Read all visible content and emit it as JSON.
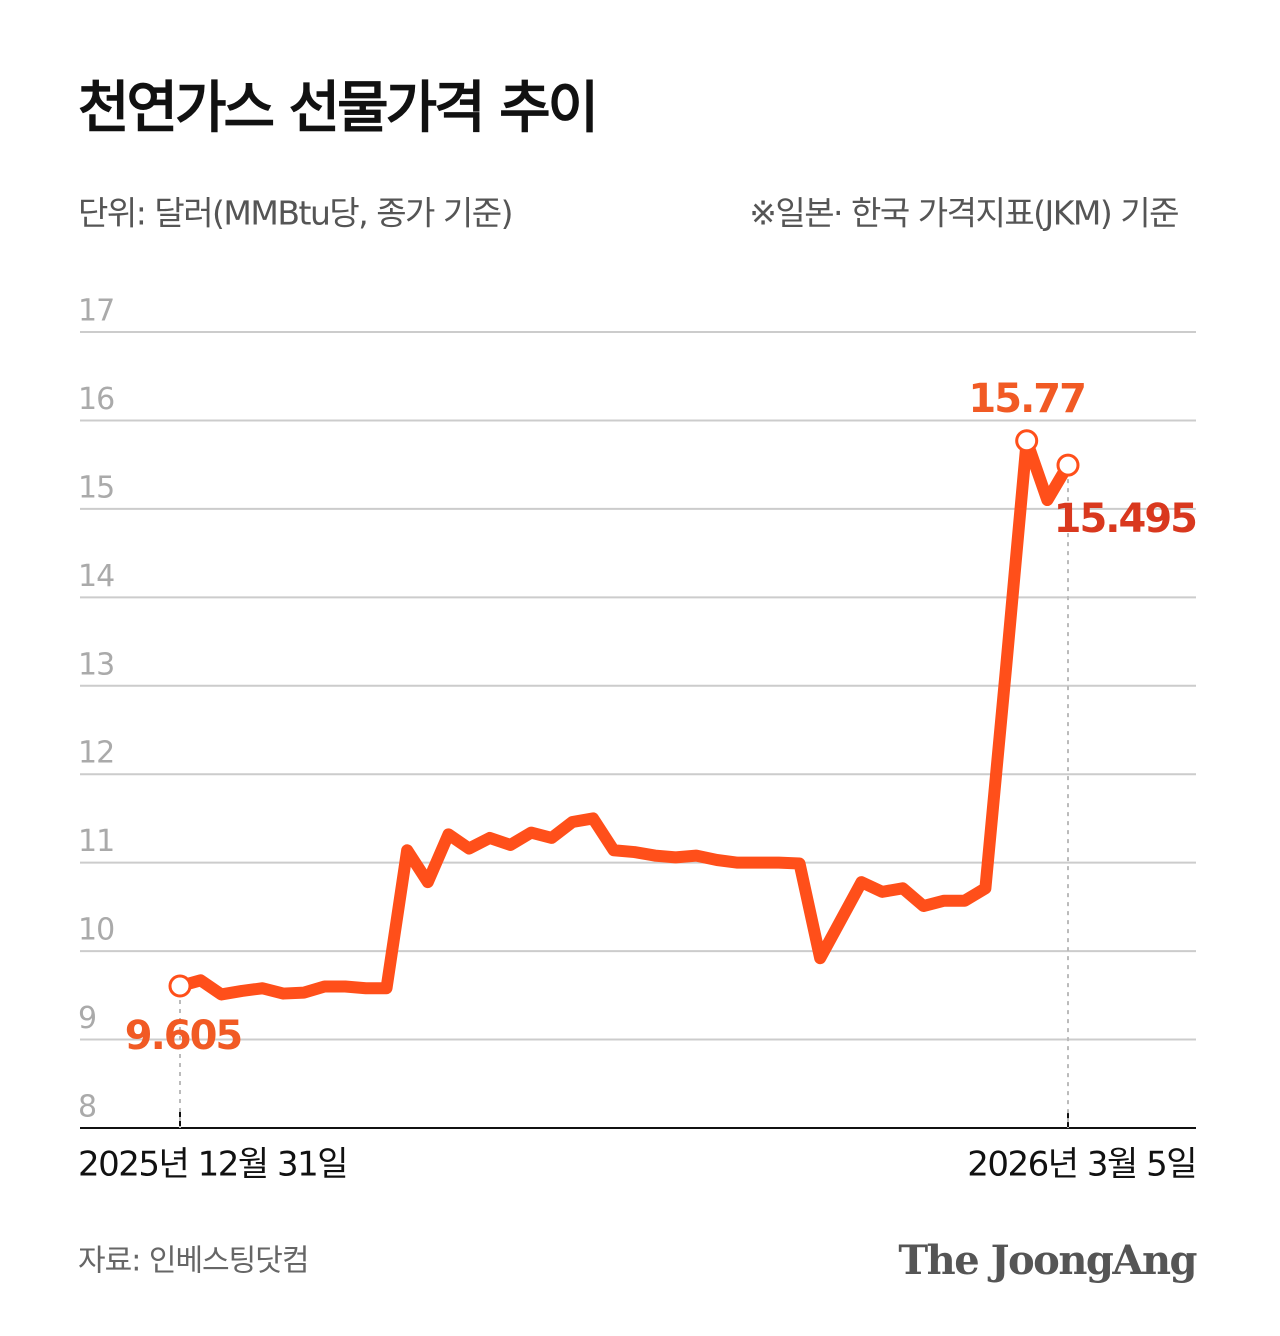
{
  "chart_data": {
    "type": "line",
    "title": "천연가스 선물가격 추이",
    "subtitle": "단위: 달러(MMBtu당, 종가 기준)",
    "note": "※일본· 한국 가격지표(JKM) 기준",
    "source": "자료: 인베스팅닷컴",
    "brand": "The JoongAng",
    "categories": [
      "2025년 12월 31일",
      null,
      null,
      null,
      null,
      null,
      null,
      null,
      null,
      null,
      null,
      null,
      null,
      null,
      null,
      null,
      null,
      null,
      null,
      null,
      null,
      null,
      null,
      null,
      null,
      null,
      null,
      null,
      null,
      null,
      null,
      null,
      null,
      null,
      null,
      null,
      null,
      null,
      null,
      null,
      null,
      null,
      null,
      "2026년 3월 5일"
    ],
    "values": [
      9.605,
      9.67,
      9.51,
      9.55,
      9.58,
      9.52,
      9.53,
      9.6,
      9.6,
      9.58,
      9.58,
      11.14,
      10.78,
      11.32,
      11.16,
      11.28,
      11.2,
      11.34,
      11.28,
      11.46,
      11.5,
      11.14,
      11.12,
      11.08,
      11.06,
      11.08,
      11.03,
      11.0,
      11.0,
      11.0,
      10.99,
      9.92,
      10.35,
      10.78,
      10.67,
      10.71,
      10.51,
      10.57,
      10.57,
      10.71,
      13.2,
      15.77,
      15.1,
      15.495
    ],
    "color": "#ff4f1a",
    "labeled_points": [
      {
        "index": 0,
        "color": "#f15a24"
      },
      {
        "index": 41,
        "color": "#f15a24"
      },
      {
        "index": 43,
        "color": "#d9381e"
      }
    ],
    "ylim": [
      8,
      17
    ],
    "yticks": [
      8,
      9,
      10,
      11,
      12,
      13,
      14,
      15,
      16,
      17
    ],
    "grid": true
  }
}
